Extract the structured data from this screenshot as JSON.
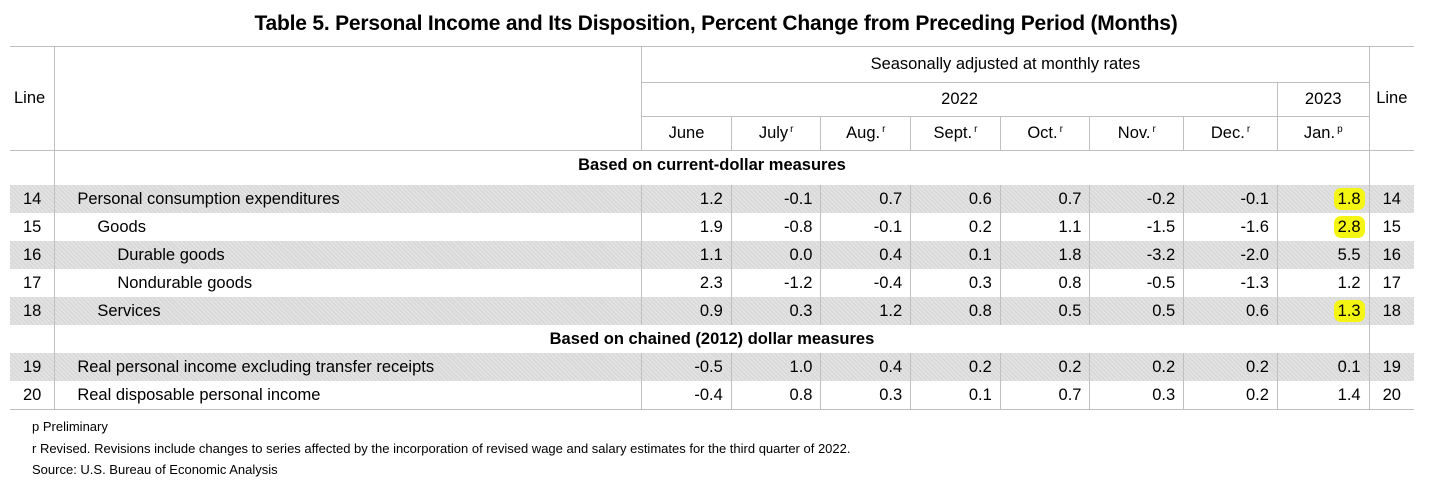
{
  "title": "Table 5. Personal Income and Its Disposition, Percent Change from Preceding Period (Months)",
  "header": {
    "line_label": "Line",
    "seasonal_label": "Seasonally adjusted at monthly rates",
    "year_2022": "2022",
    "year_2023": "2023",
    "months": [
      {
        "label": "June",
        "mark": ""
      },
      {
        "label": "July",
        "mark": "r"
      },
      {
        "label": "Aug.",
        "mark": "r"
      },
      {
        "label": "Sept.",
        "mark": "r"
      },
      {
        "label": "Oct.",
        "mark": "r"
      },
      {
        "label": "Nov.",
        "mark": "r"
      },
      {
        "label": "Dec.",
        "mark": "r"
      },
      {
        "label": "Jan.",
        "mark": "p"
      }
    ]
  },
  "sections": [
    {
      "title": "Based on current-dollar measures",
      "rows": [
        {
          "line": "14",
          "label": "Personal consumption expenditures",
          "indent": 0,
          "shaded": true,
          "values": [
            "1.2",
            "-0.1",
            "0.7",
            "0.6",
            "0.7",
            "-0.2",
            "-0.1",
            "1.8"
          ],
          "highlight_last": true
        },
        {
          "line": "15",
          "label": "Goods",
          "indent": 1,
          "shaded": false,
          "values": [
            "1.9",
            "-0.8",
            "-0.1",
            "0.2",
            "1.1",
            "-1.5",
            "-1.6",
            "2.8"
          ],
          "highlight_last": true
        },
        {
          "line": "16",
          "label": "Durable goods",
          "indent": 2,
          "shaded": true,
          "values": [
            "1.1",
            "0.0",
            "0.4",
            "0.1",
            "1.8",
            "-3.2",
            "-2.0",
            "5.5"
          ],
          "highlight_last": false
        },
        {
          "line": "17",
          "label": "Nondurable goods",
          "indent": 2,
          "shaded": false,
          "values": [
            "2.3",
            "-1.2",
            "-0.4",
            "0.3",
            "0.8",
            "-0.5",
            "-1.3",
            "1.2"
          ],
          "highlight_last": false
        },
        {
          "line": "18",
          "label": "Services",
          "indent": 1,
          "shaded": true,
          "values": [
            "0.9",
            "0.3",
            "1.2",
            "0.8",
            "0.5",
            "0.5",
            "0.6",
            "1.3"
          ],
          "highlight_last": true
        }
      ]
    },
    {
      "title": "Based on chained (2012) dollar measures",
      "rows": [
        {
          "line": "19",
          "label": "Real personal income excluding transfer receipts",
          "indent": 0,
          "shaded": true,
          "values": [
            "-0.5",
            "1.0",
            "0.4",
            "0.2",
            "0.2",
            "0.2",
            "0.2",
            "0.1"
          ],
          "highlight_last": false
        },
        {
          "line": "20",
          "label": "Real disposable personal income",
          "indent": 0,
          "shaded": false,
          "values": [
            "-0.4",
            "0.8",
            "0.3",
            "0.1",
            "0.7",
            "0.3",
            "0.2",
            "1.4"
          ],
          "highlight_last": false
        }
      ]
    }
  ],
  "footnotes": [
    "p Preliminary",
    "r Revised. Revisions include changes to series affected by the incorporation of revised wage and salary estimates for the third quarter of 2022.",
    "Source: U.S. Bureau of Economic Analysis"
  ],
  "colors": {
    "highlight": "#f5f513",
    "shade": "#d9d9d9",
    "rule": "#bfbfbf"
  }
}
